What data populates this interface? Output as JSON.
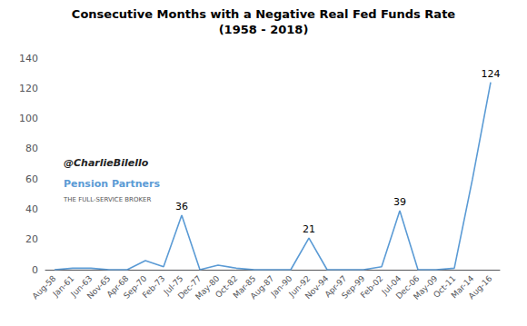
{
  "chart_data": {
    "type": "line",
    "title": "Consecutive Months with a Negative Real Fed Funds Rate",
    "subtitle": "(1958 - 2018)",
    "categories": [
      "Aug-58",
      "Jan-61",
      "Jun-63",
      "Nov-65",
      "Apr-68",
      "Sep-70",
      "Feb-73",
      "Jul-75",
      "Dec-77",
      "May-80",
      "Oct-82",
      "Mar-85",
      "Aug-87",
      "Jan-90",
      "Jun-92",
      "Nov-94",
      "Apr-97",
      "Sep-99",
      "Feb-02",
      "Jul-04",
      "Dec-06",
      "May-09",
      "Oct-11",
      "Mar-14",
      "Aug-16"
    ],
    "values": [
      0,
      1,
      1,
      0,
      0,
      6,
      2,
      36,
      0,
      3,
      1,
      0,
      0,
      0,
      21,
      0,
      0,
      0,
      2,
      39,
      0,
      0,
      1,
      60,
      124
    ],
    "color": "#5B9BD5",
    "ylim": [
      0,
      140
    ],
    "yticks": [
      0,
      20,
      40,
      60,
      80,
      100,
      120,
      140
    ],
    "grid": false,
    "annotations": [
      {
        "x": "Jul-75",
        "y": 36,
        "text": "36"
      },
      {
        "x": "Jun-92",
        "y": 21,
        "text": "21"
      },
      {
        "x": "Jul-04",
        "y": 39,
        "text": "39"
      },
      {
        "x": "Aug-16",
        "y": 124,
        "text": "124"
      }
    ],
    "watermark": [
      "@CharlieBilello",
      "Pension Partners",
      "THE FULL-SERVICE BROKER"
    ]
  }
}
